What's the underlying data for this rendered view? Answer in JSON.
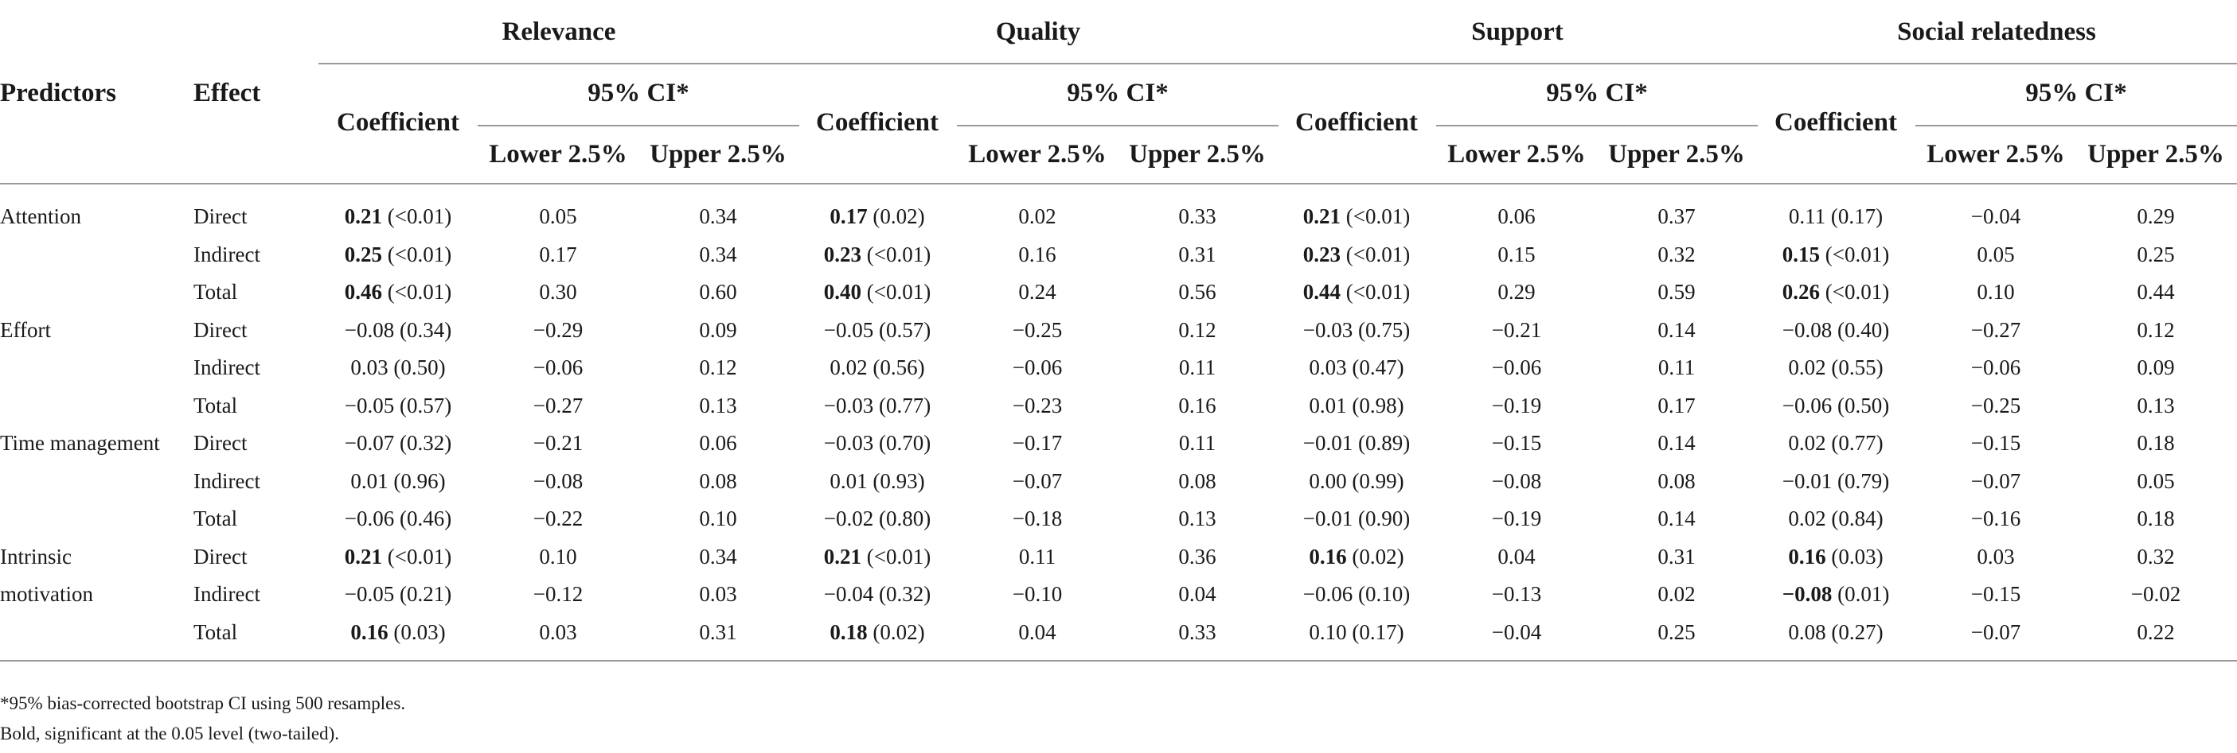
{
  "table": {
    "groups": [
      "Relevance",
      "Quality",
      "Support",
      "Social relatedness"
    ],
    "predictors_header": "Predictors",
    "effect_header": "Effect",
    "coef_header": "Coefficient",
    "ci_header": "95% CI*",
    "lower_header": "Lower 2.5%",
    "upper_header": "Upper 2.5%",
    "rows": [
      {
        "predictor": "Attention",
        "effect": "Direct",
        "cells": [
          [
            "0.21",
            "(<0.01)",
            true,
            "0.05",
            "0.34"
          ],
          [
            "0.17",
            "(0.02)",
            true,
            "0.02",
            "0.33"
          ],
          [
            "0.21",
            "(<0.01)",
            true,
            "0.06",
            "0.37"
          ],
          [
            "0.11",
            "(0.17)",
            false,
            "−0.04",
            "0.29"
          ]
        ]
      },
      {
        "predictor": "",
        "effect": "Indirect",
        "cells": [
          [
            "0.25",
            "(<0.01)",
            true,
            "0.17",
            "0.34"
          ],
          [
            "0.23",
            "(<0.01)",
            true,
            "0.16",
            "0.31"
          ],
          [
            "0.23",
            "(<0.01)",
            true,
            "0.15",
            "0.32"
          ],
          [
            "0.15",
            "(<0.01)",
            true,
            "0.05",
            "0.25"
          ]
        ]
      },
      {
        "predictor": "",
        "effect": "Total",
        "cells": [
          [
            "0.46",
            "(<0.01)",
            true,
            "0.30",
            "0.60"
          ],
          [
            "0.40",
            "(<0.01)",
            true,
            "0.24",
            "0.56"
          ],
          [
            "0.44",
            "(<0.01)",
            true,
            "0.29",
            "0.59"
          ],
          [
            "0.26",
            "(<0.01)",
            true,
            "0.10",
            "0.44"
          ]
        ]
      },
      {
        "predictor": "Effort",
        "effect": "Direct",
        "cells": [
          [
            "−0.08",
            "(0.34)",
            false,
            "−0.29",
            "0.09"
          ],
          [
            "−0.05",
            "(0.57)",
            false,
            "−0.25",
            "0.12"
          ],
          [
            "−0.03",
            "(0.75)",
            false,
            "−0.21",
            "0.14"
          ],
          [
            "−0.08",
            "(0.40)",
            false,
            "−0.27",
            "0.12"
          ]
        ]
      },
      {
        "predictor": "",
        "effect": "Indirect",
        "cells": [
          [
            "0.03",
            "(0.50)",
            false,
            "−0.06",
            "0.12"
          ],
          [
            "0.02",
            "(0.56)",
            false,
            "−0.06",
            "0.11"
          ],
          [
            "0.03",
            "(0.47)",
            false,
            "−0.06",
            "0.11"
          ],
          [
            "0.02",
            "(0.55)",
            false,
            "−0.06",
            "0.09"
          ]
        ]
      },
      {
        "predictor": "",
        "effect": "Total",
        "cells": [
          [
            "−0.05",
            "(0.57)",
            false,
            "−0.27",
            "0.13"
          ],
          [
            "−0.03",
            "(0.77)",
            false,
            "−0.23",
            "0.16"
          ],
          [
            "0.01",
            "(0.98)",
            false,
            "−0.19",
            "0.17"
          ],
          [
            "−0.06",
            "(0.50)",
            false,
            "−0.25",
            "0.13"
          ]
        ]
      },
      {
        "predictor": "Time management",
        "effect": "Direct",
        "cells": [
          [
            "−0.07",
            "(0.32)",
            false,
            "−0.21",
            "0.06"
          ],
          [
            "−0.03",
            "(0.70)",
            false,
            "−0.17",
            "0.11"
          ],
          [
            "−0.01",
            "(0.89)",
            false,
            "−0.15",
            "0.14"
          ],
          [
            "0.02",
            "(0.77)",
            false,
            "−0.15",
            "0.18"
          ]
        ]
      },
      {
        "predictor": "",
        "effect": "Indirect",
        "cells": [
          [
            "0.01",
            "(0.96)",
            false,
            "−0.08",
            "0.08"
          ],
          [
            "0.01",
            "(0.93)",
            false,
            "−0.07",
            "0.08"
          ],
          [
            "0.00",
            "(0.99)",
            false,
            "−0.08",
            "0.08"
          ],
          [
            "−0.01",
            "(0.79)",
            false,
            "−0.07",
            "0.05"
          ]
        ]
      },
      {
        "predictor": "",
        "effect": "Total",
        "cells": [
          [
            "−0.06",
            "(0.46)",
            false,
            "−0.22",
            "0.10"
          ],
          [
            "−0.02",
            "(0.80)",
            false,
            "−0.18",
            "0.13"
          ],
          [
            "−0.01",
            "(0.90)",
            false,
            "−0.19",
            "0.14"
          ],
          [
            "0.02",
            "(0.84)",
            false,
            "−0.16",
            "0.18"
          ]
        ]
      },
      {
        "predictor": "Intrinsic",
        "effect": "Direct",
        "cells": [
          [
            "0.21",
            "(<0.01)",
            true,
            "0.10",
            "0.34"
          ],
          [
            "0.21",
            "(<0.01)",
            true,
            "0.11",
            "0.36"
          ],
          [
            "0.16",
            "(0.02)",
            true,
            "0.04",
            "0.31"
          ],
          [
            "0.16",
            "(0.03)",
            true,
            "0.03",
            "0.32"
          ]
        ]
      },
      {
        "predictor": "motivation",
        "effect": "Indirect",
        "cells": [
          [
            "−0.05",
            "(0.21)",
            false,
            "−0.12",
            "0.03"
          ],
          [
            "−0.04",
            "(0.32)",
            false,
            "−0.10",
            "0.04"
          ],
          [
            "−0.06",
            "(0.10)",
            false,
            "−0.13",
            "0.02"
          ],
          [
            "−0.08",
            "(0.01)",
            true,
            "−0.15",
            "−0.02"
          ]
        ]
      },
      {
        "predictor": "",
        "effect": "Total",
        "cells": [
          [
            "0.16",
            "(0.03)",
            true,
            "0.03",
            "0.31"
          ],
          [
            "0.18",
            "(0.02)",
            true,
            "0.04",
            "0.33"
          ],
          [
            "0.10",
            "(0.17)",
            false,
            "−0.04",
            "0.25"
          ],
          [
            "0.08",
            "(0.27)",
            false,
            "−0.07",
            "0.22"
          ]
        ]
      }
    ]
  },
  "footnotes": [
    "*95% bias-corrected bootstrap CI using 500 resamples.",
    "Bold, significant at the 0.05 level (two-tailed)."
  ]
}
